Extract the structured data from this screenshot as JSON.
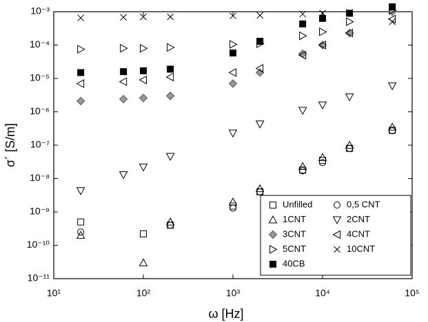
{
  "chart_data": {
    "type": "scatter",
    "x_label": "ω [Hz]",
    "y_label": "σ´ [S/m]",
    "log_x": true,
    "log_y": true,
    "legend": "lower right",
    "xlim": [
      10,
      100000
    ],
    "xticks": [
      {
        "value": 10,
        "label": "10¹"
      },
      {
        "value": 100,
        "label": "10²"
      },
      {
        "value": 1000,
        "label": "10³"
      },
      {
        "value": 10000,
        "label": "10⁴"
      },
      {
        "value": 100000,
        "label": "10⁵"
      }
    ],
    "ylim": [
      1e-11,
      0.001
    ],
    "yticks": [
      {
        "value": 1e-11,
        "label": "10⁻¹¹"
      },
      {
        "value": 1e-10,
        "label": "10⁻¹⁰"
      },
      {
        "value": 1e-09,
        "label": "10⁻⁹"
      },
      {
        "value": 1e-08,
        "label": "10⁻⁸"
      },
      {
        "value": 1e-07,
        "label": "10⁻⁷"
      },
      {
        "value": 1e-06,
        "label": "10⁻⁶"
      },
      {
        "value": 1e-05,
        "label": "10⁻⁵"
      },
      {
        "value": 0.0001,
        "label": "10⁻⁴"
      },
      {
        "value": 0.001,
        "label": "10⁻³"
      }
    ],
    "x": [
      20,
      60,
      100,
      200,
      1000,
      2000,
      6000,
      10000,
      20000,
      60000
    ],
    "series": [
      {
        "name": "Unfilled",
        "color": "#000000",
        "marker": "square",
        "filled": false,
        "values": [
          5e-10,
          null,
          2.2e-10,
          4e-10,
          1.5e-09,
          4e-09,
          1.8e-08,
          3.5e-08,
          8e-08,
          2.8e-07
        ]
      },
      {
        "name": "0,5 CNT",
        "color": "#000000",
        "marker": "circle",
        "filled": false,
        "values": [
          2.5e-10,
          null,
          null,
          4e-10,
          1.3e-09,
          4e-09,
          1.7e-08,
          3e-08,
          8e-08,
          2.7e-07
        ]
      },
      {
        "name": "1CNT",
        "color": "#000000",
        "marker": "triangle-up",
        "filled": false,
        "values": [
          2e-10,
          null,
          3e-11,
          5e-10,
          2e-09,
          5e-09,
          2.3e-08,
          4.3e-08,
          1e-07,
          3.5e-07
        ]
      },
      {
        "name": "2CNT",
        "color": "#000000",
        "marker": "triangle-down",
        "filled": false,
        "values": [
          4.3e-09,
          1.3e-08,
          2.2e-08,
          4.6e-08,
          2.3e-07,
          4.3e-07,
          1.1e-06,
          1.6e-06,
          2.8e-06,
          6e-06
        ]
      },
      {
        "name": "3CNT",
        "color": "#999999",
        "marker": "diamond",
        "filled": true,
        "values": [
          2.1e-06,
          2.4e-06,
          2.6e-06,
          3e-06,
          7e-06,
          1.5e-05,
          5.5e-05,
          0.0001,
          0.00023,
          0.001
        ]
      },
      {
        "name": "4CNT",
        "color": "#000000",
        "marker": "triangle-left",
        "filled": false,
        "values": [
          7e-06,
          8e-06,
          9e-06,
          1.1e-05,
          1.5e-05,
          2e-05,
          5e-05,
          0.0001,
          0.00023,
          0.0006
        ]
      },
      {
        "name": "5CNT",
        "color": "#000000",
        "marker": "triangle-right",
        "filled": false,
        "values": [
          7.5e-05,
          8e-05,
          8e-05,
          8.5e-05,
          0.000105,
          0.00011,
          0.00019,
          0.00025,
          0.0005,
          0.0011
        ]
      },
      {
        "name": "10CNT",
        "color": "#000000",
        "marker": "x",
        "filled": false,
        "values": [
          0.00065,
          0.00068,
          0.0007,
          0.0007,
          0.00075,
          0.00078,
          0.00085,
          0.0009,
          0.00095,
          0.0005
        ]
      },
      {
        "name": "40CB",
        "color": "#000000",
        "marker": "square",
        "filled": true,
        "values": [
          1.5e-05,
          1.6e-05,
          1.7e-05,
          1.9e-05,
          5.8e-05,
          0.00013,
          0.00043,
          0.00063,
          0.0009,
          0.0014
        ]
      }
    ]
  }
}
